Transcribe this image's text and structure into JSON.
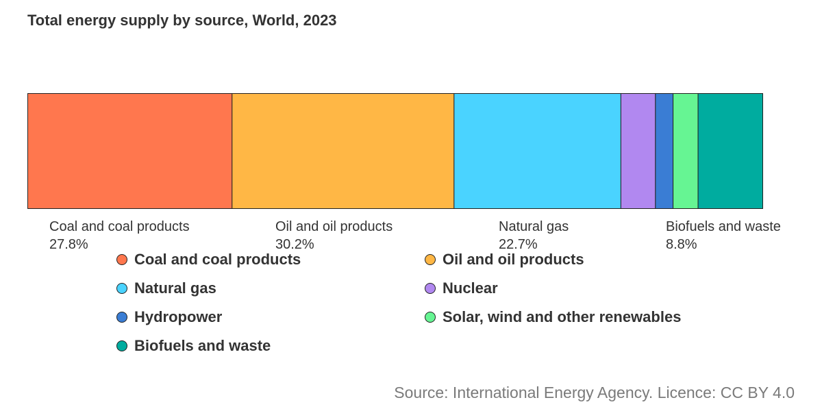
{
  "title": "Total energy supply by source, World, 2023",
  "source": "Source: International Energy Agency. Licence: CC BY 4.0",
  "chart_data": {
    "type": "bar",
    "subtype": "stacked-100-percent-horizontal",
    "title": "Total energy supply by source, World, 2023",
    "xlabel": "",
    "ylabel": "",
    "ylim": [
      0,
      100
    ],
    "grid": false,
    "legend_position": "bottom",
    "unit": "%",
    "series": [
      {
        "name": "Coal and coal products",
        "value": 27.8,
        "color": "#ff774e",
        "label": "Coal and coal products",
        "value_label": "27.8%",
        "show_label": true
      },
      {
        "name": "Oil and oil products",
        "value": 30.2,
        "color": "#ffb745",
        "label": "Oil and oil products",
        "value_label": "30.2%",
        "show_label": true
      },
      {
        "name": "Natural gas",
        "value": 22.7,
        "color": "#4ad3ff",
        "label": "Natural gas",
        "value_label": "22.7%",
        "show_label": true
      },
      {
        "name": "Nuclear",
        "value": 4.7,
        "color": "#b188f0",
        "label": "",
        "value_label": "",
        "show_label": false
      },
      {
        "name": "Hydropower",
        "value": 2.4,
        "color": "#3a7dd4",
        "label": "",
        "value_label": "",
        "show_label": false
      },
      {
        "name": "Solar, wind and other renewables",
        "value": 3.4,
        "color": "#66f593",
        "label": "",
        "value_label": "",
        "show_label": false
      },
      {
        "name": "Biofuels and waste",
        "value": 8.8,
        "color": "#00ac9f",
        "label": "Biofuels and waste",
        "value_label": "8.8%",
        "show_label": true
      }
    ]
  }
}
